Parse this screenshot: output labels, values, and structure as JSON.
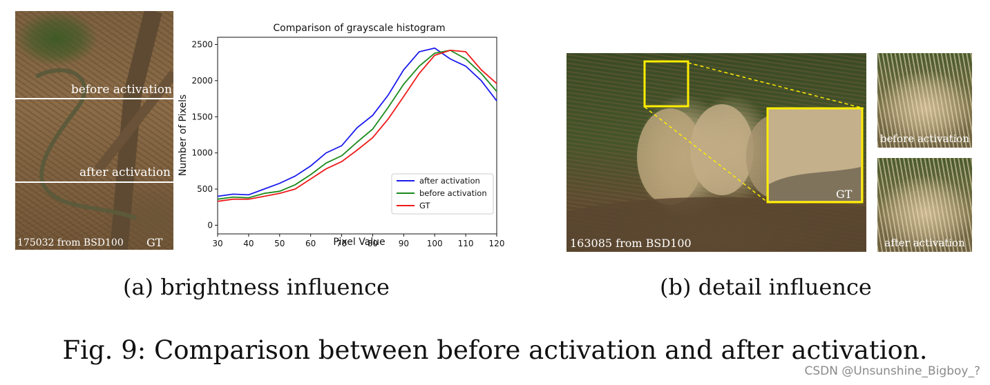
{
  "left_photo": {
    "label_before": "before activation",
    "label_after": "after activation",
    "credit": "175032 from BSD100",
    "gt": "GT"
  },
  "chart_data": {
    "type": "line",
    "title": "Comparison of  grayscale histogram",
    "xlabel": "Pixel Value",
    "ylabel": "Number of  Pixels",
    "xlim": [
      30,
      120
    ],
    "ylim": [
      -120,
      2600
    ],
    "xticks": [
      30,
      40,
      50,
      60,
      70,
      80,
      90,
      100,
      110,
      120
    ],
    "yticks": [
      0,
      500,
      1000,
      1500,
      2000,
      2500
    ],
    "grid": false,
    "legend_position": "lower-right",
    "x": [
      30,
      35,
      40,
      45,
      50,
      55,
      60,
      65,
      70,
      75,
      80,
      85,
      90,
      95,
      100,
      105,
      110,
      115,
      120
    ],
    "series": [
      {
        "name": "after activation",
        "color": "#1a1aee",
        "values": [
          400,
          430,
          420,
          500,
          580,
          680,
          820,
          1000,
          1100,
          1350,
          1520,
          1800,
          2150,
          2400,
          2450,
          2300,
          2200,
          2000,
          1720
        ]
      },
      {
        "name": "before activation",
        "color": "#1a8a1a",
        "values": [
          360,
          390,
          380,
          440,
          470,
          560,
          700,
          860,
          960,
          1150,
          1330,
          1630,
          1950,
          2200,
          2380,
          2420,
          2300,
          2100,
          1850
        ]
      },
      {
        "name": "GT",
        "color": "#ee1a1a",
        "values": [
          330,
          360,
          360,
          400,
          440,
          500,
          640,
          780,
          880,
          1040,
          1210,
          1470,
          1780,
          2100,
          2350,
          2420,
          2400,
          2150,
          1960
        ]
      }
    ]
  },
  "right_photo": {
    "credit": "163085 from BSD100",
    "gt": "GT",
    "crop_before_label": "before activation",
    "crop_after_label": "after activation"
  },
  "captions": {
    "sub_a": "(a) brightness influence",
    "sub_b": "(b) detail influence",
    "figure": "Fig. 9: Comparison between before activation and after activation."
  },
  "watermark": "CSDN @Unsunshine_Bigboy_?",
  "colors": {
    "highlight_box": "#ffee00",
    "connector": "#ffee00"
  }
}
